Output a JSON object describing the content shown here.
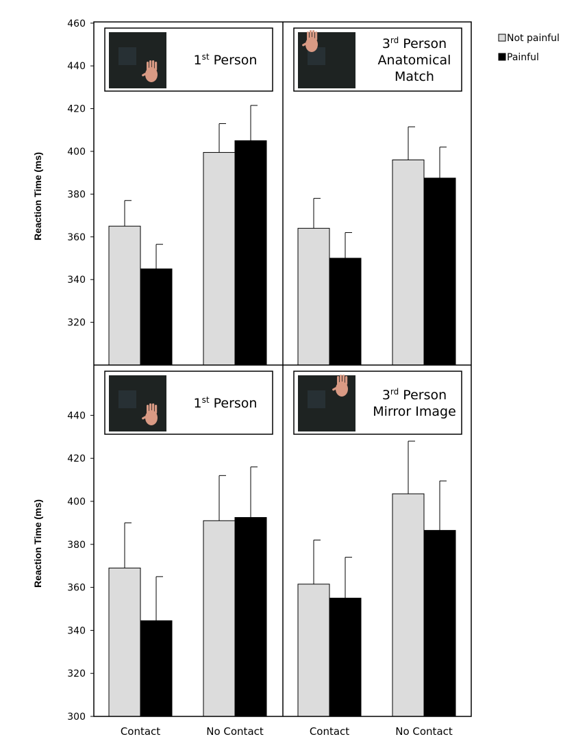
{
  "chart_data": {
    "type": "bar",
    "ylabel": "Reaction Time (ms)",
    "categories": [
      "Contact",
      "No Contact"
    ],
    "legend": {
      "position": "top-right",
      "entries": [
        {
          "name": "Not painful",
          "color": "#dcdcdc"
        },
        {
          "name": "Painful",
          "color": "#000000"
        }
      ]
    },
    "rows": [
      {
        "ylim": [
          300,
          460
        ],
        "yticks": [
          320,
          340,
          360,
          380,
          400,
          420,
          440,
          460
        ],
        "panels": [
          {
            "title_lines": [
              {
                "main": "1",
                "sup": "st",
                "rest": " Person"
              }
            ],
            "thumbnail_hand": "bottom-right",
            "series": [
              {
                "name": "Not painful",
                "values": [
                  365,
                  399.5
                ],
                "errors": [
                  12,
                  13.5
                ]
              },
              {
                "name": "Painful",
                "values": [
                  345,
                  405
                ],
                "errors": [
                  11.5,
                  16.5
                ]
              }
            ]
          },
          {
            "title_lines": [
              {
                "main": "3",
                "sup": "rd",
                "rest": " Person"
              },
              {
                "main": "Anatomical",
                "sup": "",
                "rest": ""
              },
              {
                "main": "Match",
                "sup": "",
                "rest": ""
              }
            ],
            "thumbnail_hand": "top-left",
            "series": [
              {
                "name": "Not painful",
                "values": [
                  364,
                  396
                ],
                "errors": [
                  14,
                  15.5
                ]
              },
              {
                "name": "Painful",
                "values": [
                  350,
                  387.5
                ],
                "errors": [
                  12,
                  14.5
                ]
              }
            ]
          }
        ]
      },
      {
        "ylim": [
          300,
          460
        ],
        "yticks": [
          300,
          320,
          340,
          360,
          380,
          400,
          420,
          440
        ],
        "panels": [
          {
            "title_lines": [
              {
                "main": "1",
                "sup": "st",
                "rest": " Person"
              }
            ],
            "thumbnail_hand": "bottom-right",
            "series": [
              {
                "name": "Not painful",
                "values": [
                  369,
                  391
                ],
                "errors": [
                  21,
                  21
                ]
              },
              {
                "name": "Painful",
                "values": [
                  344.5,
                  392.5
                ],
                "errors": [
                  20.5,
                  23.5
                ]
              }
            ]
          },
          {
            "title_lines": [
              {
                "main": "3",
                "sup": "rd",
                "rest": " Person"
              },
              {
                "main": "Mirror Image",
                "sup": "",
                "rest": ""
              }
            ],
            "thumbnail_hand": "top-right",
            "series": [
              {
                "name": "Not painful",
                "values": [
                  361.5,
                  403.5
                ],
                "errors": [
                  20.5,
                  24.5
                ]
              },
              {
                "name": "Painful",
                "values": [
                  355,
                  386.5
                ],
                "errors": [
                  19,
                  23
                ]
              }
            ]
          }
        ]
      }
    ]
  }
}
